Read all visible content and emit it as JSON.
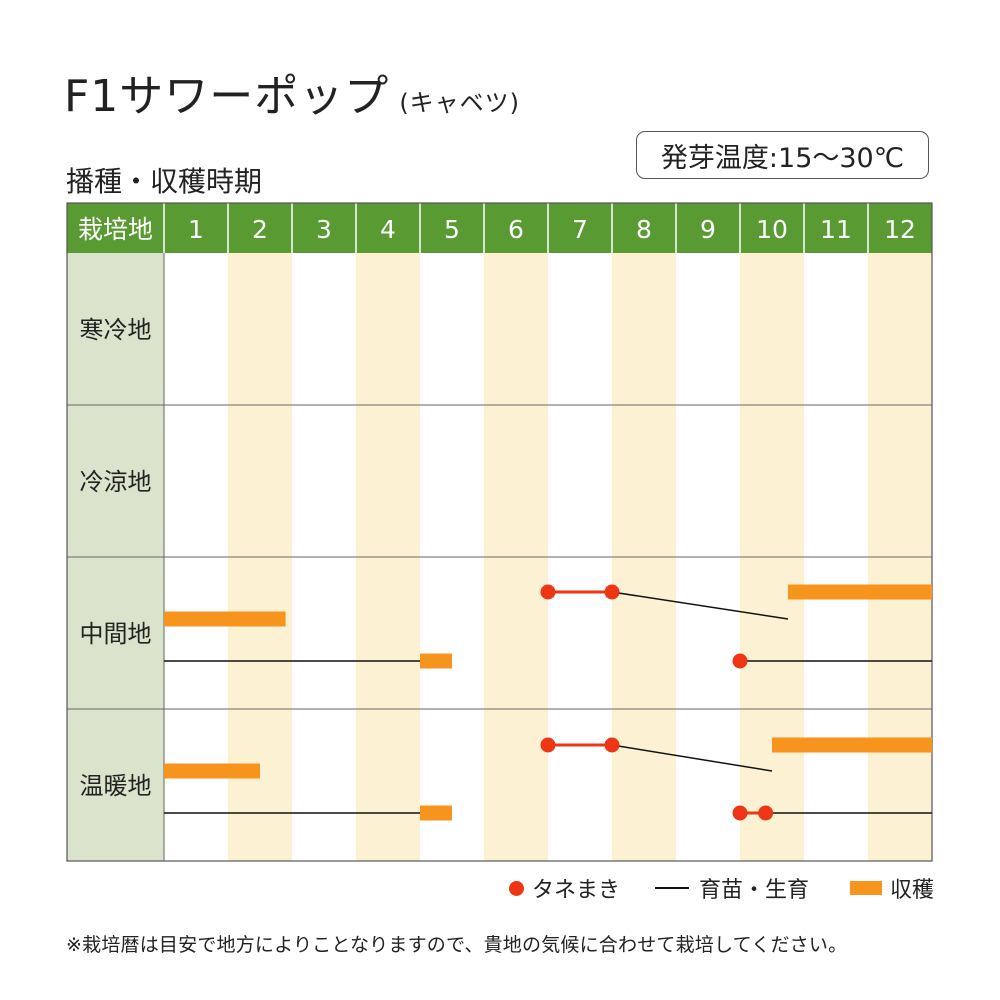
{
  "title": {
    "main": "F1サワーポップ",
    "sub": "(キャベツ)"
  },
  "section_title": "播種・収穫時期",
  "germination": "発芽温度:15〜30℃",
  "table": {
    "corner_label": "栽培地",
    "months": [
      "1",
      "2",
      "3",
      "4",
      "5",
      "6",
      "7",
      "8",
      "9",
      "10",
      "11",
      "12"
    ],
    "regions": [
      "寒冷地",
      "冷涼地",
      "中間地",
      "温暖地"
    ]
  },
  "colors": {
    "header_green": "#5a9a32",
    "label_bg": "#dae3cc",
    "stripe": "#fdf1d4",
    "sowing": "#ee3516",
    "harvest": "#f7941d",
    "line": "#111111"
  },
  "chart_data": {
    "type": "table",
    "x_unit": "month",
    "rows": [
      {
        "region": "寒冷地",
        "tracks": []
      },
      {
        "region": "冷涼地",
        "tracks": []
      },
      {
        "region": "中間地",
        "tracks": [
          {
            "sowing": [
              7.0,
              8.0
            ],
            "growth": [
              [
                8.0,
                10.75
              ]
            ],
            "harvest": [
              [
                10.75,
                13.0
              ]
            ]
          },
          {
            "sowing": [
              10.0
            ],
            "growth": [
              [
                1.0,
                5.0
              ],
              [
                10.0,
                13.0
              ]
            ],
            "harvest": [
              [
                5.0,
                5.5
              ]
            ]
          },
          {
            "harvest": [
              [
                1.0,
                2.9
              ]
            ]
          }
        ]
      },
      {
        "region": "温暖地",
        "tracks": [
          {
            "sowing": [
              7.0,
              8.0
            ],
            "growth": [
              [
                8.0,
                10.5
              ]
            ],
            "harvest": [
              [
                10.5,
                13.0
              ]
            ]
          },
          {
            "harvest": [
              [
                1.0,
                2.5
              ]
            ]
          },
          {
            "sowing": [
              10.0,
              10.4
            ],
            "growth": [
              [
                1.0,
                5.0
              ],
              [
                10.4,
                13.0
              ]
            ],
            "harvest": [
              [
                5.0,
                5.5
              ]
            ]
          }
        ]
      }
    ]
  },
  "legend": {
    "sowing": "タネまき",
    "growth": "育苗・生育",
    "harvest": "収穫"
  },
  "footnote": "※栽培暦は目安で地方によりことなりますので、貴地の気候に合わせて栽培してください。"
}
